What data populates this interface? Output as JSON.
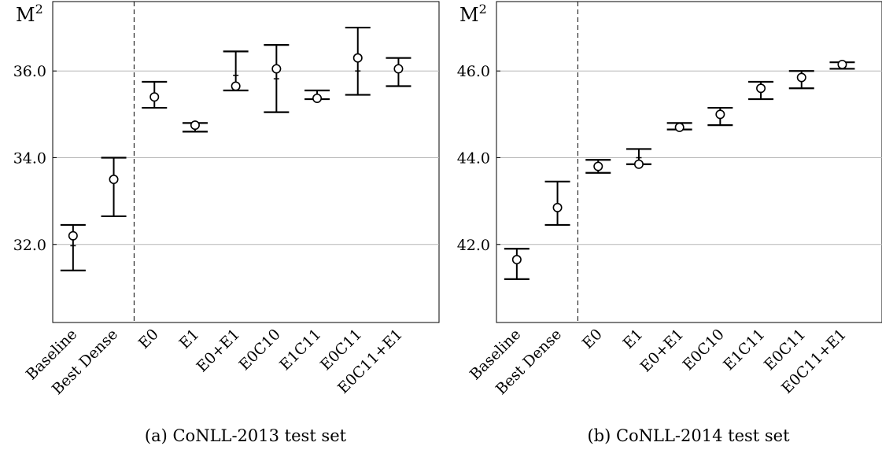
{
  "chart_data": [
    {
      "type": "scatter",
      "caption": "(a) CoNLL-2013 test set",
      "ylabel": "M",
      "ylabel_superscript": "2",
      "ylim": [
        30.2,
        37.6
      ],
      "yticks": [
        32.0,
        34.0,
        36.0
      ],
      "ytick_labels": [
        "32.0",
        "34.0",
        "36.0"
      ],
      "grid": "horizontal",
      "categories": [
        "Baseline",
        "Best Dense",
        "E0",
        "E1",
        "E0+E1",
        "E0C10",
        "E1C11",
        "E0C11",
        "E0C11+E1"
      ],
      "separator_after_index": 1,
      "values": [
        32.2,
        33.5,
        35.4,
        34.75,
        35.65,
        36.05,
        35.37,
        36.3,
        36.05
      ],
      "error_low": [
        31.4,
        32.65,
        35.15,
        34.6,
        35.55,
        35.05,
        35.35,
        35.45,
        35.65
      ],
      "error_high": [
        32.45,
        34.0,
        35.75,
        34.8,
        36.45,
        36.6,
        35.55,
        37.0,
        36.3
      ],
      "error_mid_tick": [
        31.97,
        null,
        null,
        null,
        35.9,
        35.82,
        null,
        36.0,
        null
      ]
    },
    {
      "type": "scatter",
      "caption": "(b) CoNLL-2014 test set",
      "ylabel": "M",
      "ylabel_superscript": "2",
      "ylim": [
        40.2,
        47.6
      ],
      "yticks": [
        42.0,
        44.0,
        46.0
      ],
      "ytick_labels": [
        "42.0",
        "44.0",
        "46.0"
      ],
      "grid": "horizontal",
      "categories": [
        "Baseline",
        "Best Dense",
        "E0",
        "E1",
        "E0+E1",
        "E0C10",
        "E1C11",
        "E0C11",
        "E0C11+E1"
      ],
      "separator_after_index": 1,
      "values": [
        41.65,
        42.85,
        43.8,
        43.85,
        44.7,
        45.0,
        45.6,
        45.85,
        46.15
      ],
      "error_low": [
        41.2,
        42.45,
        43.65,
        43.85,
        44.65,
        44.75,
        45.35,
        45.6,
        46.05
      ],
      "error_high": [
        41.9,
        43.45,
        43.95,
        44.2,
        44.8,
        45.15,
        45.75,
        46.0,
        46.2
      ],
      "error_mid_tick": [
        null,
        null,
        null,
        44.0,
        null,
        null,
        null,
        null,
        null
      ]
    }
  ]
}
